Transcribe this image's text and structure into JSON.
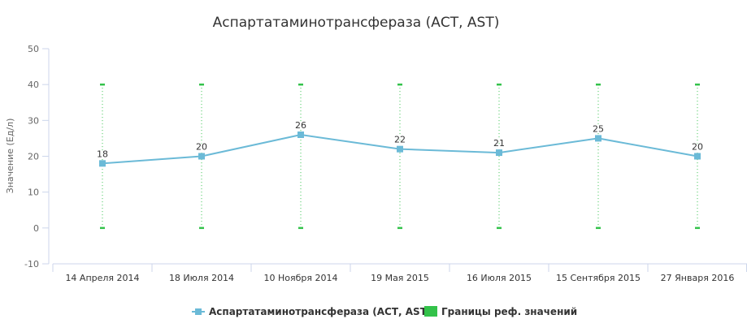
{
  "chart_data": {
    "type": "line",
    "title": "Аспартатаминотрансфераза (АСТ, AST)",
    "ylabel": "Значение (Ед/л)",
    "ylim": [
      -10,
      50
    ],
    "yticks": [
      -10,
      0,
      10,
      20,
      30,
      40,
      50
    ],
    "categories": [
      "14 Апреля 2014",
      "18 Июля 2014",
      "10 Ноября 2014",
      "19 Мая 2015",
      "16 Июля 2015",
      "15 Сентября 2015",
      "27 Января 2016"
    ],
    "series": [
      {
        "name": "Аспартатаминотрансфераза (АСТ, AST)",
        "type": "line",
        "color": "#6bbad7",
        "values": [
          18,
          20,
          26,
          22,
          21,
          25,
          20
        ]
      }
    ],
    "reference_range": {
      "name": "Границы реф. значений",
      "color": "#33c24a",
      "low": [
        0,
        0,
        0,
        0,
        0,
        0,
        0
      ],
      "high": [
        40,
        40,
        40,
        40,
        40,
        40,
        40
      ]
    },
    "legend_position": "bottom",
    "grid": false
  }
}
